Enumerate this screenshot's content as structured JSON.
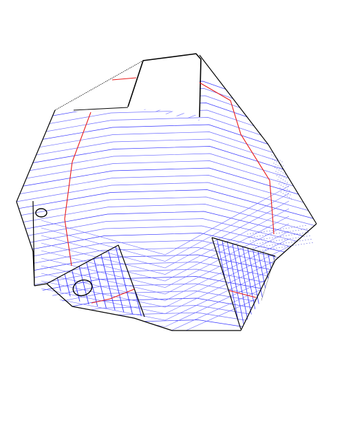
{
  "figure": {
    "kind": "3d-wireframe-solid",
    "colors": {
      "background": "#ffffff",
      "outline": "#000000",
      "hatch": "#3333ff",
      "hatch_light": "#6a6aff",
      "cut_line": "#e81818",
      "dotted": "#2222cc"
    },
    "features": {
      "hatched_panels": 4,
      "holes": 2,
      "red_cut_lines": 4
    }
  }
}
